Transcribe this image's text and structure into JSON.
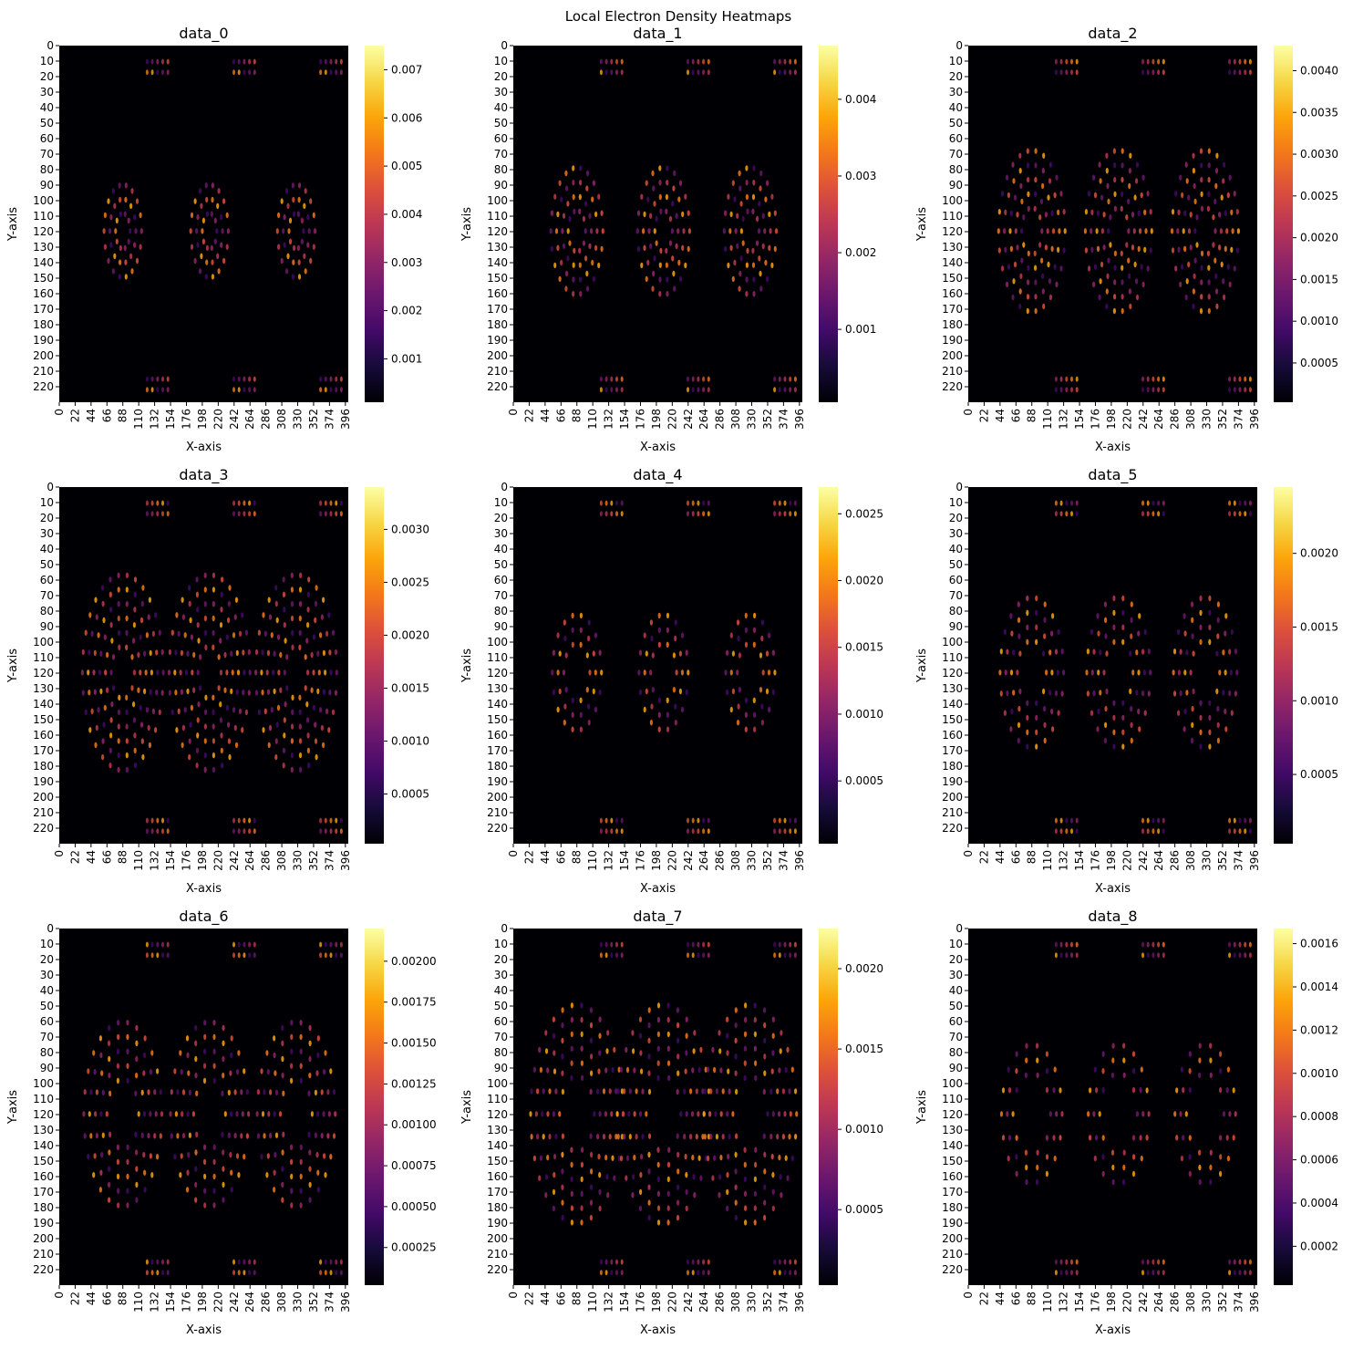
{
  "suptitle": "Local Electron Density Heatmaps",
  "colormap": "inferno",
  "chart_data": [
    {
      "type": "heatmap",
      "title": "data_0",
      "xlabel": "X-axis",
      "ylabel": "Y-axis",
      "x_ticks": [
        0,
        22,
        44,
        66,
        88,
        110,
        132,
        154,
        176,
        198,
        220,
        242,
        264,
        286,
        308,
        330,
        352,
        374,
        396
      ],
      "y_ticks": [
        0,
        10,
        20,
        30,
        40,
        50,
        60,
        70,
        80,
        90,
        100,
        110,
        120,
        130,
        140,
        150,
        160,
        170,
        180,
        190,
        200,
        210,
        220
      ],
      "x_range": [
        0,
        400
      ],
      "y_range": [
        0,
        230
      ],
      "colorbar": {
        "min": 0.0001,
        "max": 0.0075,
        "ticks": [
          "0.001",
          "0.002",
          "0.003",
          "0.004",
          "0.005",
          "0.006",
          "0.007"
        ]
      }
    },
    {
      "type": "heatmap",
      "title": "data_1",
      "xlabel": "X-axis",
      "ylabel": "Y-axis",
      "x_ticks": [
        0,
        22,
        44,
        66,
        88,
        110,
        132,
        154,
        176,
        198,
        220,
        242,
        264,
        286,
        308,
        330,
        352,
        374,
        396
      ],
      "y_ticks": [
        0,
        10,
        20,
        30,
        40,
        50,
        60,
        70,
        80,
        90,
        100,
        110,
        120,
        130,
        140,
        150,
        160,
        170,
        180,
        190,
        200,
        210,
        220
      ],
      "x_range": [
        0,
        400
      ],
      "y_range": [
        0,
        230
      ],
      "colorbar": {
        "min": 5e-05,
        "max": 0.0047,
        "ticks": [
          "0.001",
          "0.002",
          "0.003",
          "0.004"
        ]
      }
    },
    {
      "type": "heatmap",
      "title": "data_2",
      "xlabel": "X-axis",
      "ylabel": "Y-axis",
      "x_ticks": [
        0,
        22,
        44,
        66,
        88,
        110,
        132,
        154,
        176,
        198,
        220,
        242,
        264,
        286,
        308,
        330,
        352,
        374,
        396
      ],
      "y_ticks": [
        0,
        10,
        20,
        30,
        40,
        50,
        60,
        70,
        80,
        90,
        100,
        110,
        120,
        130,
        140,
        150,
        160,
        170,
        180,
        190,
        200,
        210,
        220
      ],
      "x_range": [
        0,
        400
      ],
      "y_range": [
        0,
        230
      ],
      "colorbar": {
        "min": 3e-05,
        "max": 0.0043,
        "ticks": [
          "0.0005",
          "0.0010",
          "0.0015",
          "0.0020",
          "0.0025",
          "0.0030",
          "0.0035",
          "0.0040"
        ]
      }
    },
    {
      "type": "heatmap",
      "title": "data_3",
      "xlabel": "X-axis",
      "ylabel": "Y-axis",
      "x_ticks": [
        0,
        22,
        44,
        66,
        88,
        110,
        132,
        154,
        176,
        198,
        220,
        242,
        264,
        286,
        308,
        330,
        352,
        374,
        396
      ],
      "y_ticks": [
        0,
        10,
        20,
        30,
        40,
        50,
        60,
        70,
        80,
        90,
        100,
        110,
        120,
        130,
        140,
        150,
        160,
        170,
        180,
        190,
        200,
        210,
        220
      ],
      "x_range": [
        0,
        400
      ],
      "y_range": [
        0,
        230
      ],
      "colorbar": {
        "min": 3e-05,
        "max": 0.0034,
        "ticks": [
          "0.0005",
          "0.0010",
          "0.0015",
          "0.0020",
          "0.0025",
          "0.0030"
        ]
      }
    },
    {
      "type": "heatmap",
      "title": "data_4",
      "xlabel": "X-axis",
      "ylabel": "Y-axis",
      "x_ticks": [
        0,
        22,
        44,
        66,
        88,
        110,
        132,
        154,
        176,
        198,
        220,
        242,
        264,
        286,
        308,
        330,
        352,
        374,
        396
      ],
      "y_ticks": [
        0,
        10,
        20,
        30,
        40,
        50,
        60,
        70,
        80,
        90,
        100,
        110,
        120,
        130,
        140,
        150,
        160,
        170,
        180,
        190,
        200,
        210,
        220
      ],
      "x_range": [
        0,
        400
      ],
      "y_range": [
        0,
        230
      ],
      "colorbar": {
        "min": 3e-05,
        "max": 0.0027,
        "ticks": [
          "0.0005",
          "0.0010",
          "0.0015",
          "0.0020",
          "0.0025"
        ]
      }
    },
    {
      "type": "heatmap",
      "title": "data_5",
      "xlabel": "X-axis",
      "ylabel": "Y-axis",
      "x_ticks": [
        0,
        22,
        44,
        66,
        88,
        110,
        132,
        154,
        176,
        198,
        220,
        242,
        264,
        286,
        308,
        330,
        352,
        374,
        396
      ],
      "y_ticks": [
        0,
        10,
        20,
        30,
        40,
        50,
        60,
        70,
        80,
        90,
        100,
        110,
        120,
        130,
        140,
        150,
        160,
        170,
        180,
        190,
        200,
        210,
        220
      ],
      "x_range": [
        0,
        400
      ],
      "y_range": [
        0,
        230
      ],
      "colorbar": {
        "min": 3e-05,
        "max": 0.00245,
        "ticks": [
          "0.0005",
          "0.0010",
          "0.0015",
          "0.0020"
        ]
      }
    },
    {
      "type": "heatmap",
      "title": "data_6",
      "xlabel": "X-axis",
      "ylabel": "Y-axis",
      "x_ticks": [
        0,
        22,
        44,
        66,
        88,
        110,
        132,
        154,
        176,
        198,
        220,
        242,
        264,
        286,
        308,
        330,
        352,
        374,
        396
      ],
      "y_ticks": [
        0,
        10,
        20,
        30,
        40,
        50,
        60,
        70,
        80,
        90,
        100,
        110,
        120,
        130,
        140,
        150,
        160,
        170,
        180,
        190,
        200,
        210,
        220
      ],
      "x_range": [
        0,
        400
      ],
      "y_range": [
        0,
        230
      ],
      "colorbar": {
        "min": 2e-05,
        "max": 0.0022,
        "ticks": [
          "0.00025",
          "0.00050",
          "0.00075",
          "0.00100",
          "0.00125",
          "0.00150",
          "0.00175",
          "0.00200"
        ]
      }
    },
    {
      "type": "heatmap",
      "title": "data_7",
      "xlabel": "X-axis",
      "ylabel": "Y-axis",
      "x_ticks": [
        0,
        22,
        44,
        66,
        88,
        110,
        132,
        154,
        176,
        198,
        220,
        242,
        264,
        286,
        308,
        330,
        352,
        374,
        396
      ],
      "y_ticks": [
        0,
        10,
        20,
        30,
        40,
        50,
        60,
        70,
        80,
        90,
        100,
        110,
        120,
        130,
        140,
        150,
        160,
        170,
        180,
        190,
        200,
        210,
        220
      ],
      "x_range": [
        0,
        400
      ],
      "y_range": [
        0,
        230
      ],
      "colorbar": {
        "min": 3e-05,
        "max": 0.00225,
        "ticks": [
          "0.0005",
          "0.0010",
          "0.0015",
          "0.0020"
        ]
      }
    },
    {
      "type": "heatmap",
      "title": "data_8",
      "xlabel": "X-axis",
      "ylabel": "Y-axis",
      "x_ticks": [
        0,
        22,
        44,
        66,
        88,
        110,
        132,
        154,
        176,
        198,
        220,
        242,
        264,
        286,
        308,
        330,
        352,
        374,
        396
      ],
      "y_ticks": [
        0,
        10,
        20,
        30,
        40,
        50,
        60,
        70,
        80,
        90,
        100,
        110,
        120,
        130,
        140,
        150,
        160,
        170,
        180,
        190,
        200,
        210,
        220
      ],
      "x_range": [
        0,
        400
      ],
      "y_range": [
        0,
        230
      ],
      "colorbar": {
        "min": 2e-05,
        "max": 0.00167,
        "ticks": [
          "0.0002",
          "0.0004",
          "0.0006",
          "0.0008",
          "0.0010",
          "0.0012",
          "0.0014",
          "0.0016"
        ]
      }
    }
  ]
}
